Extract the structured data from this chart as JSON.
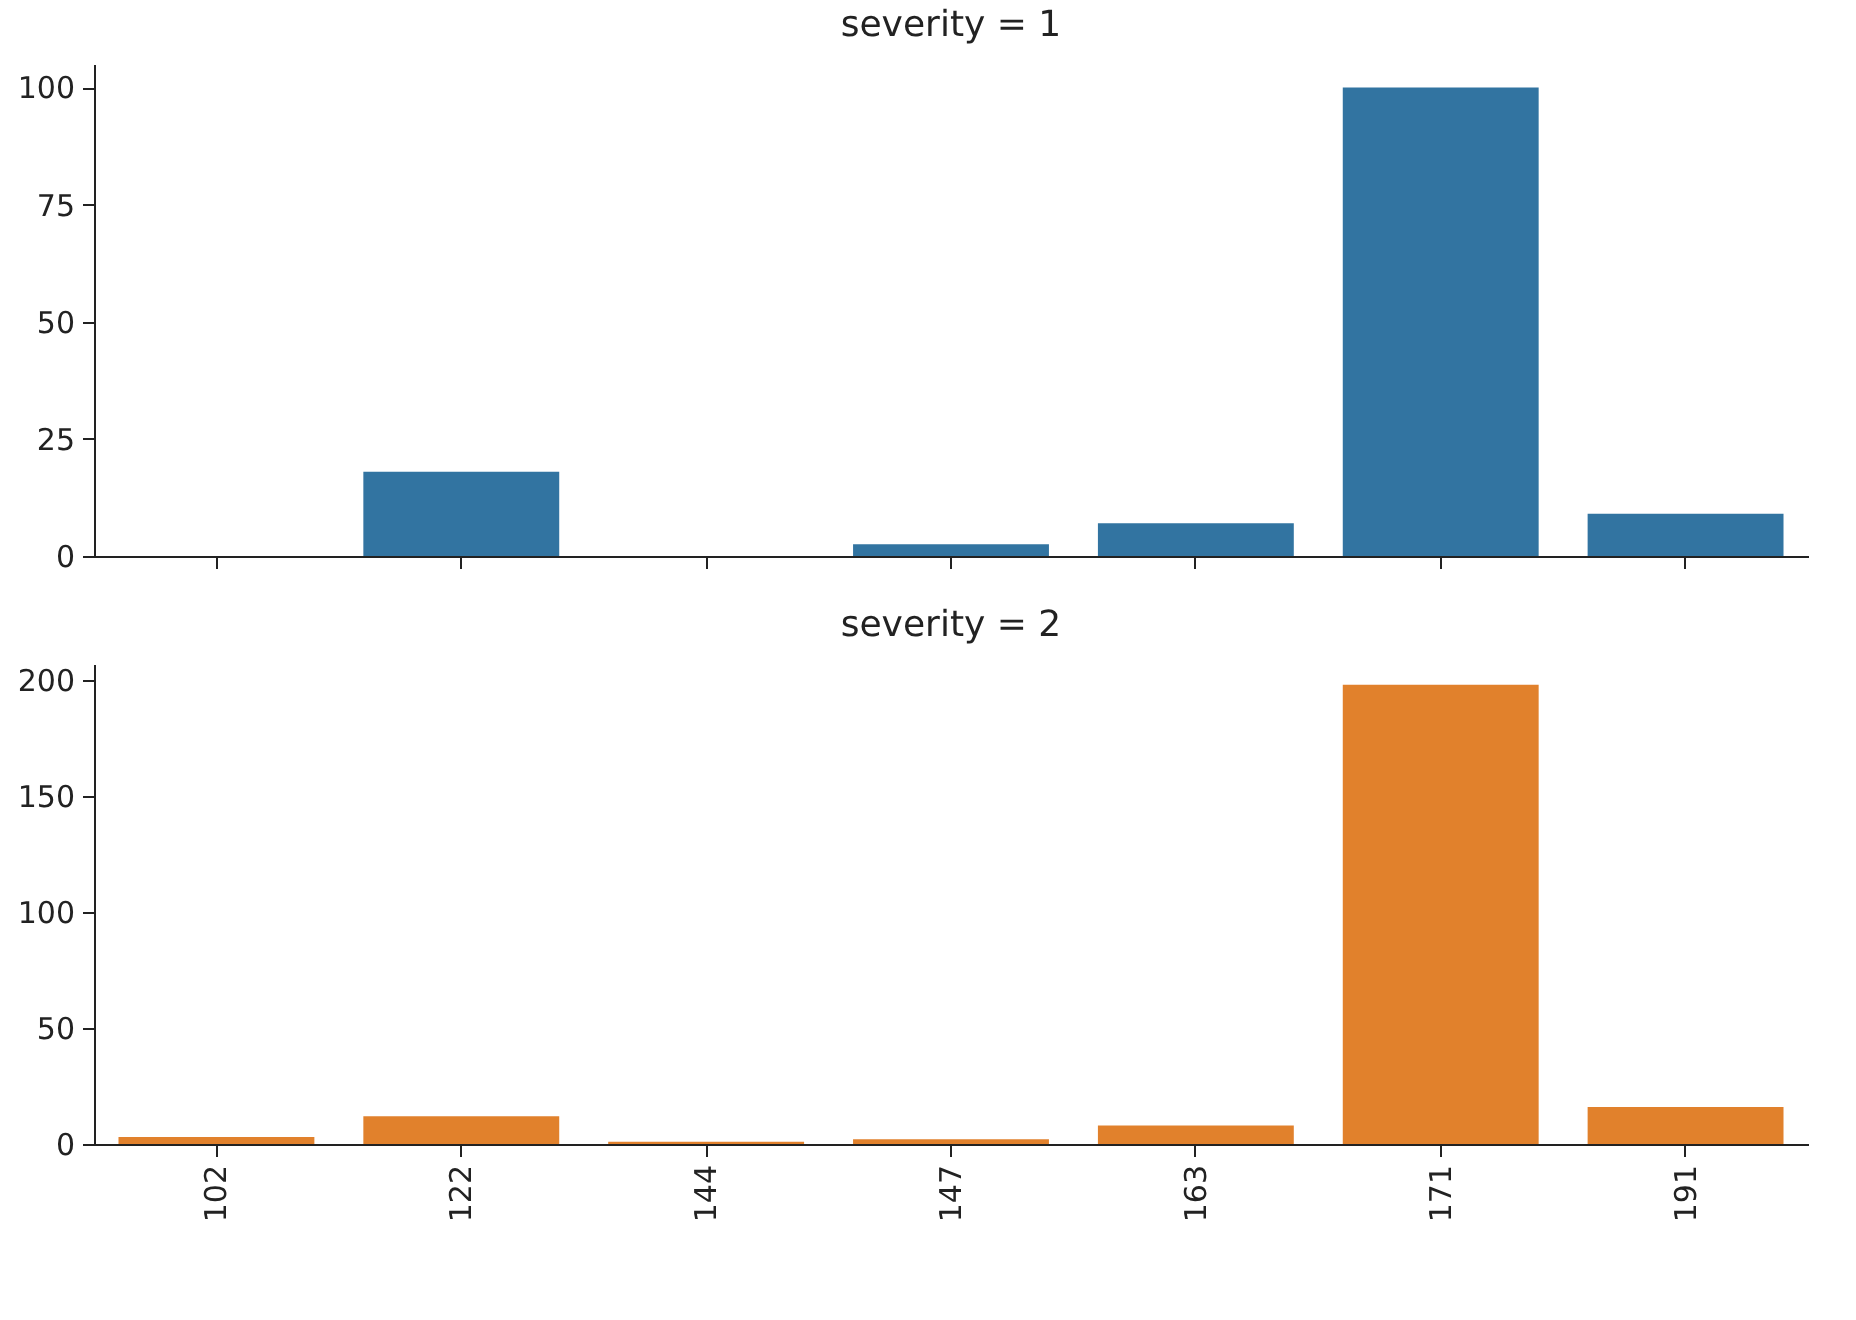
{
  "chart_data": [
    {
      "type": "bar",
      "title": "severity = 1",
      "categories": [
        "102",
        "122",
        "144",
        "147",
        "163",
        "171",
        "191"
      ],
      "values": [
        0,
        18,
        0,
        2.5,
        7,
        100,
        9
      ],
      "color": "#3274a1",
      "ylim": [
        0,
        105
      ],
      "yticks": [
        0,
        25,
        50,
        75,
        100
      ],
      "tick_labels": "y"
    },
    {
      "type": "bar",
      "title": "severity = 2",
      "categories": [
        "102",
        "122",
        "144",
        "147",
        "163",
        "171",
        "191"
      ],
      "values": [
        3,
        12,
        1,
        2,
        8,
        198,
        16
      ],
      "color": "#e1812c",
      "ylim": [
        0,
        207
      ],
      "yticks": [
        0,
        50,
        100,
        150,
        200
      ]
    }
  ]
}
